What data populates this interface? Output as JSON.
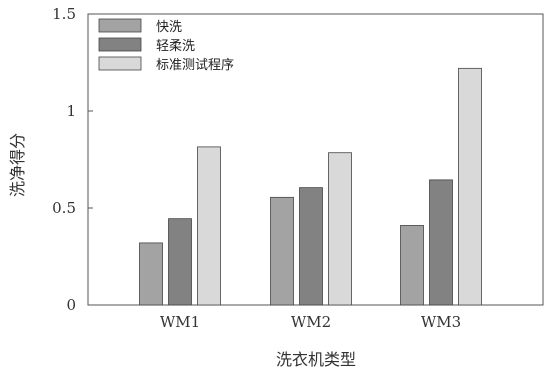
{
  "chart_data": {
    "type": "bar",
    "categories": [
      "WM1",
      "WM2",
      "WM3"
    ],
    "series": [
      {
        "name": "快洗",
        "values": [
          0.32,
          0.555,
          0.41
        ],
        "color": "#a3a3a3"
      },
      {
        "name": "轻柔洗",
        "values": [
          0.445,
          0.605,
          0.645
        ],
        "color": "#828282"
      },
      {
        "name": "标准测试程序",
        "values": [
          0.815,
          0.785,
          1.22
        ],
        "color": "#d9d9d9"
      }
    ],
    "xlabel": "洗衣机类型",
    "ylabel": "洗净得分",
    "ylim": [
      0,
      1.5
    ],
    "yticks": [
      0,
      0.5,
      1,
      1.5
    ],
    "ytick_labels": [
      "0",
      "0.5",
      "1",
      "1.5"
    ],
    "grid": false,
    "legend_position": "top-left"
  }
}
